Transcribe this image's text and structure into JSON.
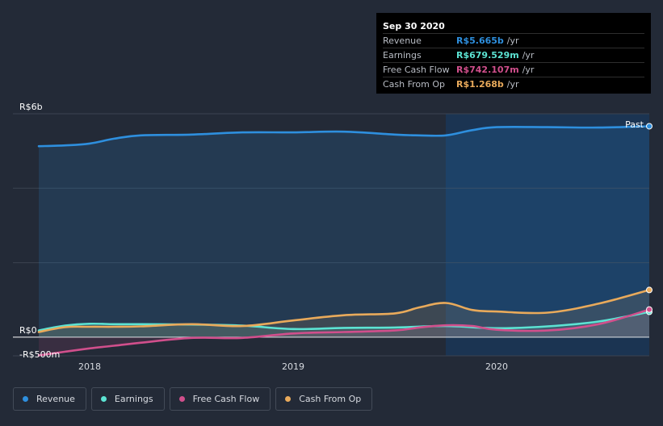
{
  "chart_data": {
    "type": "line",
    "currency": "R$",
    "y_unit": "billions",
    "ylim": [
      -0.5,
      6.0
    ],
    "xlim": [
      2017.75,
      2020.75
    ],
    "y_ticks": [
      {
        "value": 6.0,
        "label": "R$6b"
      },
      {
        "value": 0.0,
        "label": "R$0"
      },
      {
        "value": -0.5,
        "label": "-R$500m"
      }
    ],
    "x_ticks": [
      {
        "value": 2018,
        "label": "2018"
      },
      {
        "value": 2019,
        "label": "2019"
      },
      {
        "value": 2020,
        "label": "2020"
      }
    ],
    "past_label": "Past",
    "past_region_start": 2019.75,
    "series": [
      {
        "name": "Revenue",
        "color": "#2e8fde",
        "fill": true,
        "x": [
          2017.75,
          2017.88,
          2018.0,
          2018.12,
          2018.25,
          2018.5,
          2018.75,
          2019.0,
          2019.25,
          2019.5,
          2019.62,
          2019.75,
          2019.88,
          2020.0,
          2020.25,
          2020.5,
          2020.75
        ],
        "values": [
          5.13,
          5.15,
          5.2,
          5.33,
          5.42,
          5.44,
          5.5,
          5.5,
          5.52,
          5.44,
          5.42,
          5.42,
          5.56,
          5.64,
          5.64,
          5.63,
          5.665
        ]
      },
      {
        "name": "Earnings",
        "color": "#5ce3d3",
        "fill": true,
        "x": [
          2017.75,
          2017.88,
          2018.0,
          2018.12,
          2018.25,
          2018.5,
          2018.75,
          2019.0,
          2019.25,
          2019.5,
          2019.75,
          2020.0,
          2020.25,
          2020.5,
          2020.75
        ],
        "values": [
          0.18,
          0.31,
          0.36,
          0.35,
          0.35,
          0.34,
          0.31,
          0.22,
          0.25,
          0.26,
          0.3,
          0.24,
          0.29,
          0.42,
          0.68
        ]
      },
      {
        "name": "Free Cash Flow",
        "color": "#d14f8c",
        "fill": true,
        "x": [
          2017.75,
          2017.88,
          2018.0,
          2018.12,
          2018.25,
          2018.5,
          2018.75,
          2019.0,
          2019.25,
          2019.5,
          2019.62,
          2019.75,
          2019.88,
          2020.0,
          2020.25,
          2020.5,
          2020.75
        ],
        "values": [
          -0.49,
          -0.39,
          -0.3,
          -0.23,
          -0.15,
          -0.02,
          -0.02,
          0.1,
          0.14,
          0.18,
          0.26,
          0.32,
          0.3,
          0.2,
          0.18,
          0.35,
          0.742
        ]
      },
      {
        "name": "Cash From Op",
        "color": "#e9aa5b",
        "fill": true,
        "x": [
          2017.75,
          2017.88,
          2018.0,
          2018.12,
          2018.25,
          2018.5,
          2018.75,
          2019.0,
          2019.25,
          2019.5,
          2019.62,
          2019.75,
          2019.88,
          2020.0,
          2020.25,
          2020.5,
          2020.75
        ],
        "values": [
          0.14,
          0.27,
          0.28,
          0.28,
          0.29,
          0.35,
          0.3,
          0.45,
          0.59,
          0.64,
          0.8,
          0.92,
          0.73,
          0.69,
          0.66,
          0.9,
          1.268
        ]
      }
    ]
  },
  "tooltip": {
    "date": "Sep 30 2020",
    "rows": [
      {
        "label": "Revenue",
        "value": "R$5.665b",
        "unit": "/yr",
        "color": "#2e8fde"
      },
      {
        "label": "Earnings",
        "value": "R$679.529m",
        "unit": "/yr",
        "color": "#5ce3d3"
      },
      {
        "label": "Free Cash Flow",
        "value": "R$742.107m",
        "unit": "/yr",
        "color": "#d14f8c"
      },
      {
        "label": "Cash From Op",
        "value": "R$1.268b",
        "unit": "/yr",
        "color": "#e9aa5b"
      }
    ]
  },
  "legend": [
    {
      "label": "Revenue",
      "color": "#2e8fde"
    },
    {
      "label": "Earnings",
      "color": "#5ce3d3"
    },
    {
      "label": "Free Cash Flow",
      "color": "#d14f8c"
    },
    {
      "label": "Cash From Op",
      "color": "#e9aa5b"
    }
  ]
}
